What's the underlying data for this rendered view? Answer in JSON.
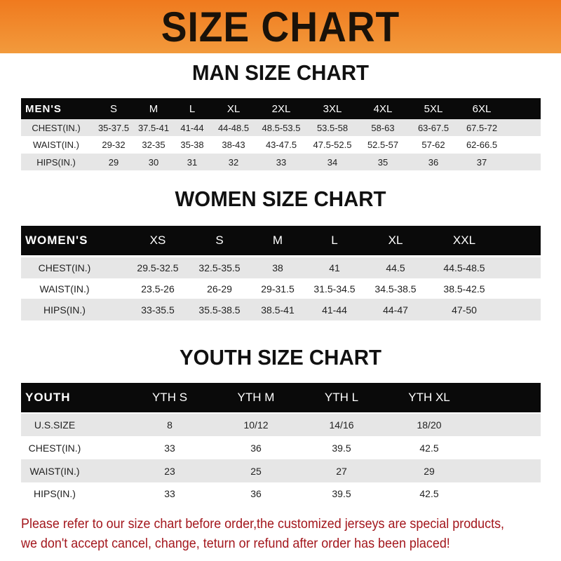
{
  "banner": {
    "title": "SIZE CHART",
    "color": "#f07a1e"
  },
  "men": {
    "title": "MAN SIZE CHART",
    "header": [
      "MEN'S",
      "S",
      "M",
      "L",
      "XL",
      "2XL",
      "3XL",
      "4XL",
      "5XL",
      "6XL"
    ],
    "rows": [
      [
        "CHEST(IN.)",
        "35-37.5",
        "37.5-41",
        "41-44",
        "44-48.5",
        "48.5-53.5",
        "53.5-58",
        "58-63",
        "63-67.5",
        "67.5-72"
      ],
      [
        "WAIST(IN.)",
        "29-32",
        "32-35",
        "35-38",
        "38-43",
        "43-47.5",
        "47.5-52.5",
        "52.5-57",
        "57-62",
        "62-66.5"
      ],
      [
        "HIPS(IN.)",
        "29",
        "30",
        "31",
        "32",
        "33",
        "34",
        "35",
        "36",
        "37"
      ]
    ]
  },
  "women": {
    "title": "WOMEN SIZE CHART",
    "header": [
      "WOMEN'S",
      "XS",
      "S",
      "M",
      "L",
      "XL",
      "XXL"
    ],
    "rows": [
      [
        "CHEST(IN.)",
        "29.5-32.5",
        "32.5-35.5",
        "38",
        "41",
        "44.5",
        "44.5-48.5"
      ],
      [
        "WAIST(IN.)",
        "23.5-26",
        "26-29",
        "29-31.5",
        "31.5-34.5",
        "34.5-38.5",
        "38.5-42.5"
      ],
      [
        "HIPS(IN.)",
        "33-35.5",
        "35.5-38.5",
        "38.5-41",
        "41-44",
        "44-47",
        "47-50"
      ]
    ]
  },
  "youth": {
    "title": "YOUTH SIZE CHART",
    "header": [
      "YOUTH",
      "YTH S",
      "YTH M",
      "YTH L",
      "YTH XL"
    ],
    "rows": [
      [
        "U.S.SIZE",
        "8",
        "10/12",
        "14/16",
        "18/20"
      ],
      [
        "CHEST(IN.)",
        "33",
        "36",
        "39.5",
        "42.5"
      ],
      [
        "WAIST(IN.)",
        "23",
        "25",
        "27",
        "29"
      ],
      [
        "HIPS(IN.)",
        "33",
        "36",
        "39.5",
        "42.5"
      ]
    ]
  },
  "note": {
    "line1": "Please refer to our size chart before order,the customized jerseys are special products,",
    "line2": "we don't accept cancel, change, teturn or refund after order has been placed!",
    "color": "#a3161c"
  }
}
